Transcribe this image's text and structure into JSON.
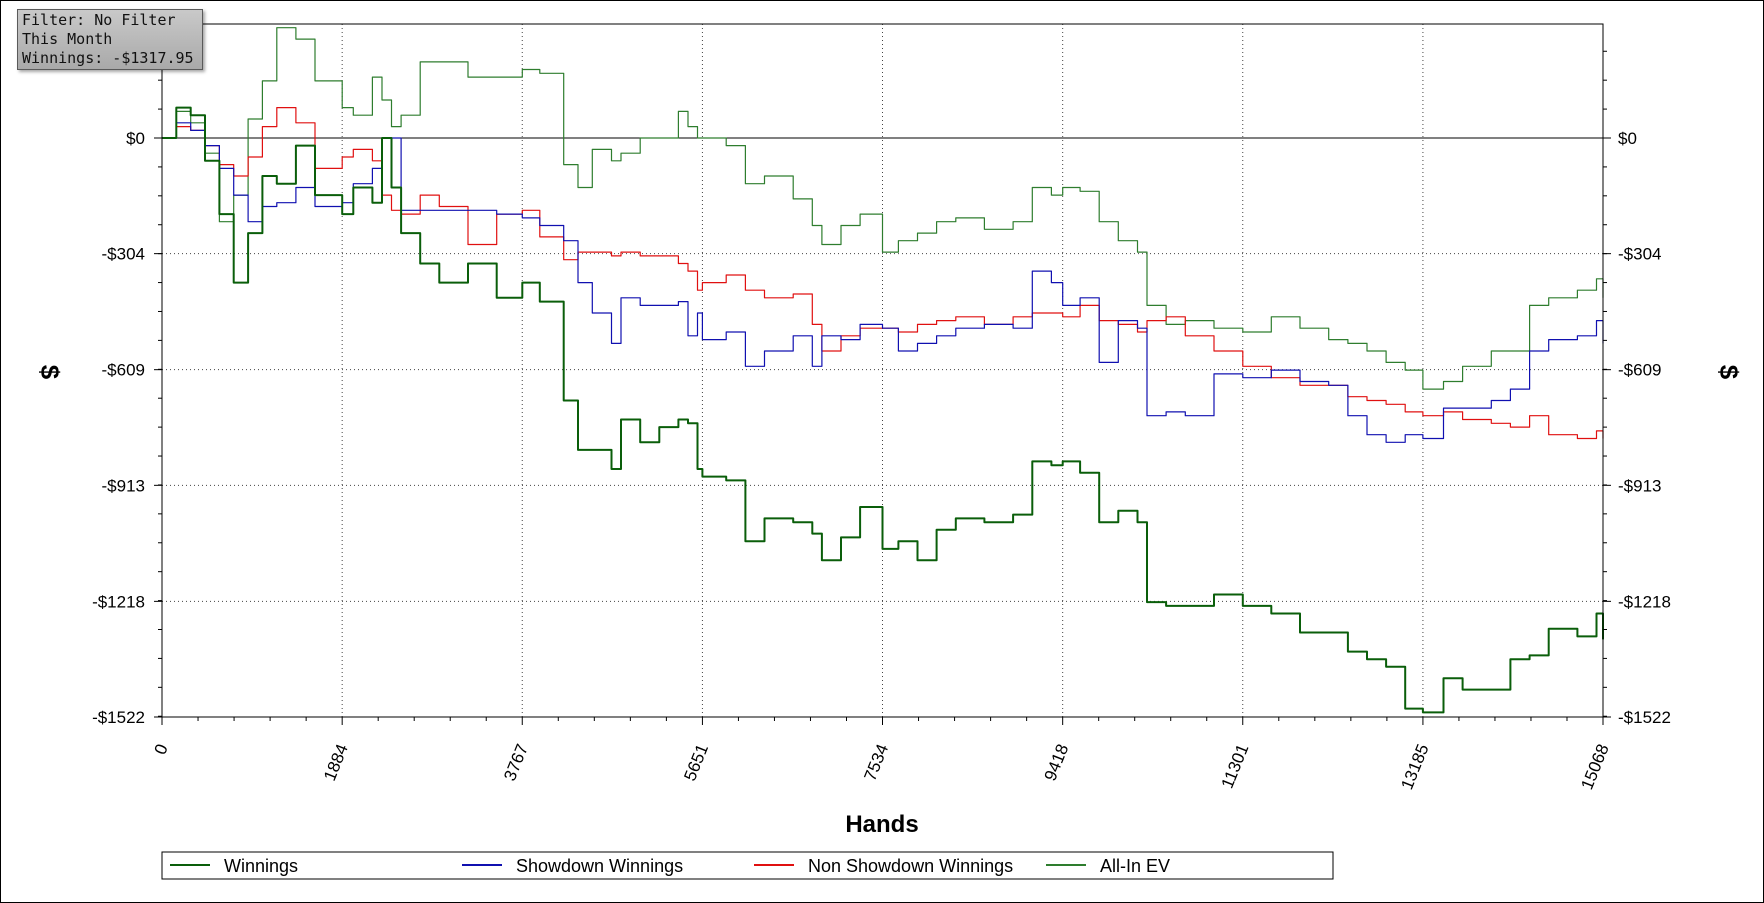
{
  "info_box": {
    "filter": "Filter: No Filter",
    "period": "This Month",
    "winnings": "Winnings: -$1317.95"
  },
  "chart_data": {
    "type": "line",
    "xlabel": "Hands",
    "ylabel": "$",
    "xlim": [
      0,
      15068
    ],
    "ylim": [
      -1522,
      300
    ],
    "x_ticks": [
      0,
      1884,
      3767,
      5651,
      7534,
      9418,
      11301,
      13185,
      15068
    ],
    "x_tick_labels": [
      "0",
      "1884",
      "3767",
      "5651",
      "7534",
      "9418",
      "11301",
      "13185",
      "15068"
    ],
    "y_ticks": [
      0,
      -304,
      -609,
      -913,
      -1218,
      -1522
    ],
    "y_tick_labels": [
      "$0",
      "-$304",
      "-$609",
      "-$913",
      "-$1218",
      "-$1522"
    ],
    "grid": true,
    "legend_position": "bottom",
    "series": [
      {
        "name": "Winnings",
        "color": "#0a5e0a",
        "x": [
          0,
          150,
          300,
          450,
          600,
          750,
          900,
          1050,
          1200,
          1400,
          1600,
          1884,
          2000,
          2200,
          2300,
          2400,
          2500,
          2700,
          2900,
          3200,
          3500,
          3767,
          3950,
          4200,
          4350,
          4500,
          4700,
          4800,
          5000,
          5200,
          5400,
          5500,
          5600,
          5651,
          5900,
          6100,
          6300,
          6600,
          6800,
          6900,
          7100,
          7300,
          7534,
          7700,
          7900,
          8100,
          8300,
          8600,
          8900,
          9100,
          9300,
          9418,
          9600,
          9800,
          10000,
          10200,
          10300,
          10500,
          10700,
          11000,
          11301,
          11600,
          11900,
          12200,
          12400,
          12600,
          12800,
          13000,
          13185,
          13400,
          13600,
          13900,
          14100,
          14300,
          14500,
          14800,
          15000,
          15068
        ],
        "values": [
          0,
          80,
          60,
          -60,
          -200,
          -380,
          -250,
          -100,
          -120,
          -20,
          -150,
          -200,
          -130,
          -170,
          0,
          -130,
          -250,
          -330,
          -380,
          -330,
          -420,
          -380,
          -430,
          -690,
          -820,
          -820,
          -870,
          -740,
          -800,
          -760,
          -740,
          -750,
          -870,
          -890,
          -900,
          -1060,
          -1000,
          -1010,
          -1040,
          -1110,
          -1050,
          -970,
          -1080,
          -1060,
          -1110,
          -1030,
          -1000,
          -1010,
          -990,
          -850,
          -860,
          -850,
          -880,
          -1010,
          -980,
          -1010,
          -1220,
          -1230,
          -1230,
          -1200,
          -1230,
          -1250,
          -1300,
          -1300,
          -1350,
          -1370,
          -1390,
          -1500,
          -1510,
          -1420,
          -1450,
          -1450,
          -1370,
          -1360,
          -1290,
          -1310,
          -1250,
          -1318
        ]
      },
      {
        "name": "Showdown Winnings",
        "color": "#1010b0",
        "x": [
          0,
          150,
          300,
          450,
          600,
          750,
          900,
          1050,
          1200,
          1400,
          1600,
          1884,
          2000,
          2200,
          2300,
          2400,
          2500,
          2700,
          2900,
          3200,
          3500,
          3767,
          3950,
          4200,
          4350,
          4500,
          4700,
          4800,
          5000,
          5200,
          5400,
          5500,
          5600,
          5651,
          5900,
          6100,
          6300,
          6600,
          6800,
          6900,
          7100,
          7300,
          7534,
          7700,
          7900,
          8100,
          8300,
          8600,
          8900,
          9100,
          9300,
          9418,
          9600,
          9800,
          10000,
          10200,
          10300,
          10500,
          10700,
          11000,
          11301,
          11600,
          11900,
          12200,
          12400,
          12600,
          12800,
          13000,
          13185,
          13400,
          13600,
          13900,
          14100,
          14300,
          14500,
          14800,
          15000,
          15068
        ],
        "values": [
          0,
          40,
          20,
          -20,
          -80,
          -150,
          -220,
          -180,
          -170,
          -130,
          -180,
          -170,
          -120,
          -80,
          0,
          0,
          -190,
          -190,
          -190,
          -190,
          -200,
          -210,
          -230,
          -270,
          -380,
          -460,
          -540,
          -420,
          -440,
          -440,
          -430,
          -520,
          -460,
          -530,
          -510,
          -600,
          -560,
          -520,
          -600,
          -520,
          -530,
          -490,
          -500,
          -560,
          -540,
          -520,
          -500,
          -490,
          -500,
          -350,
          -380,
          -440,
          -420,
          -590,
          -480,
          -500,
          -730,
          -720,
          -730,
          -620,
          -630,
          -610,
          -640,
          -650,
          -730,
          -780,
          -800,
          -780,
          -790,
          -710,
          -710,
          -690,
          -660,
          -560,
          -530,
          -520,
          -480,
          -540
        ]
      },
      {
        "name": "Non Showdown Winnings",
        "color": "#e01010",
        "x": [
          0,
          150,
          300,
          450,
          600,
          750,
          900,
          1050,
          1200,
          1400,
          1600,
          1884,
          2000,
          2200,
          2300,
          2400,
          2500,
          2700,
          2900,
          3200,
          3500,
          3767,
          3950,
          4200,
          4350,
          4500,
          4700,
          4800,
          5000,
          5200,
          5400,
          5500,
          5600,
          5651,
          5900,
          6100,
          6300,
          6600,
          6800,
          6900,
          7100,
          7300,
          7534,
          7700,
          7900,
          8100,
          8300,
          8600,
          8900,
          9100,
          9300,
          9418,
          9600,
          9800,
          10000,
          10200,
          10300,
          10500,
          10700,
          11000,
          11301,
          11600,
          11900,
          12200,
          12400,
          12600,
          12800,
          13000,
          13185,
          13400,
          13600,
          13900,
          14100,
          14300,
          14500,
          14800,
          15000,
          15068
        ],
        "values": [
          0,
          30,
          20,
          -20,
          -70,
          -100,
          -50,
          30,
          80,
          40,
          -80,
          -50,
          -30,
          -60,
          -150,
          -190,
          -200,
          -150,
          -180,
          -280,
          -200,
          -190,
          -260,
          -320,
          -300,
          -300,
          -310,
          -300,
          -310,
          -310,
          -330,
          -350,
          -400,
          -380,
          -360,
          -400,
          -420,
          -410,
          -490,
          -560,
          -520,
          -500,
          -500,
          -510,
          -490,
          -480,
          -470,
          -490,
          -470,
          -460,
          -460,
          -470,
          -440,
          -480,
          -490,
          -510,
          -480,
          -470,
          -520,
          -560,
          -600,
          -630,
          -650,
          -650,
          -680,
          -690,
          -700,
          -720,
          -730,
          -720,
          -740,
          -750,
          -760,
          -730,
          -780,
          -790,
          -770,
          -790
        ]
      },
      {
        "name": "All-In EV",
        "color": "#2e7d2e",
        "x": [
          0,
          150,
          300,
          450,
          600,
          750,
          900,
          1050,
          1200,
          1400,
          1600,
          1884,
          2000,
          2200,
          2300,
          2400,
          2500,
          2700,
          2900,
          3200,
          3500,
          3767,
          3950,
          4200,
          4350,
          4500,
          4700,
          4800,
          5000,
          5200,
          5400,
          5500,
          5600,
          5651,
          5900,
          6100,
          6300,
          6600,
          6800,
          6900,
          7100,
          7300,
          7534,
          7700,
          7900,
          8100,
          8300,
          8600,
          8900,
          9100,
          9300,
          9418,
          9600,
          9800,
          10000,
          10200,
          10300,
          10500,
          10700,
          11000,
          11301,
          11600,
          11900,
          12200,
          12400,
          12600,
          12800,
          13000,
          13185,
          13400,
          13600,
          13900,
          14100,
          14300,
          14500,
          14800,
          15000,
          15068
        ],
        "values": [
          0,
          70,
          40,
          -40,
          -220,
          -150,
          50,
          150,
          290,
          260,
          150,
          80,
          60,
          160,
          100,
          30,
          60,
          200,
          200,
          160,
          160,
          180,
          170,
          -70,
          -130,
          -30,
          -60,
          -40,
          0,
          0,
          70,
          30,
          0,
          0,
          -20,
          -120,
          -100,
          -160,
          -230,
          -280,
          -230,
          -200,
          -300,
          -270,
          -250,
          -220,
          -210,
          -240,
          -220,
          -130,
          -150,
          -130,
          -140,
          -220,
          -270,
          -300,
          -440,
          -490,
          -480,
          -500,
          -510,
          -470,
          -500,
          -530,
          -540,
          -560,
          -590,
          -610,
          -660,
          -640,
          -600,
          -560,
          -560,
          -440,
          -420,
          -400,
          -370,
          -420
        ]
      }
    ]
  }
}
